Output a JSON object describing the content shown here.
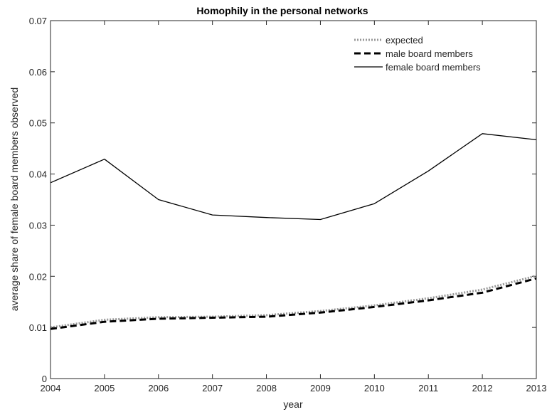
{
  "chart_data": {
    "type": "line",
    "title": "Homophily in the personal networks",
    "xlabel": "year",
    "ylabel": "average share of female board members observed",
    "x": [
      2004,
      2005,
      2006,
      2007,
      2008,
      2009,
      2010,
      2011,
      2012,
      2013
    ],
    "xlim": [
      2004,
      2013
    ],
    "ylim": [
      0,
      0.07
    ],
    "xticks": [
      "2004",
      "2005",
      "2006",
      "2007",
      "2008",
      "2009",
      "2010",
      "2011",
      "2012",
      "2013"
    ],
    "yticks": [
      "0",
      "0.01",
      "0.02",
      "0.03",
      "0.04",
      "0.05",
      "0.06",
      "0.07"
    ],
    "grid": false,
    "legend_position": "top-right",
    "series": [
      {
        "name": "expected",
        "values": [
          0.01,
          0.0115,
          0.012,
          0.0121,
          0.0124,
          0.0132,
          0.0143,
          0.0157,
          0.0174,
          0.0201
        ],
        "color": "#999999",
        "style": "dotted"
      },
      {
        "name": "male board members",
        "values": [
          0.0097,
          0.0111,
          0.0117,
          0.0119,
          0.0121,
          0.0129,
          0.014,
          0.0153,
          0.0168,
          0.0196
        ],
        "color": "#000000",
        "style": "dashed"
      },
      {
        "name": "female board members",
        "values": [
          0.0383,
          0.0429,
          0.035,
          0.032,
          0.0315,
          0.0311,
          0.0342,
          0.0406,
          0.0479,
          0.0467
        ],
        "color": "#000000",
        "style": "solid"
      }
    ]
  }
}
